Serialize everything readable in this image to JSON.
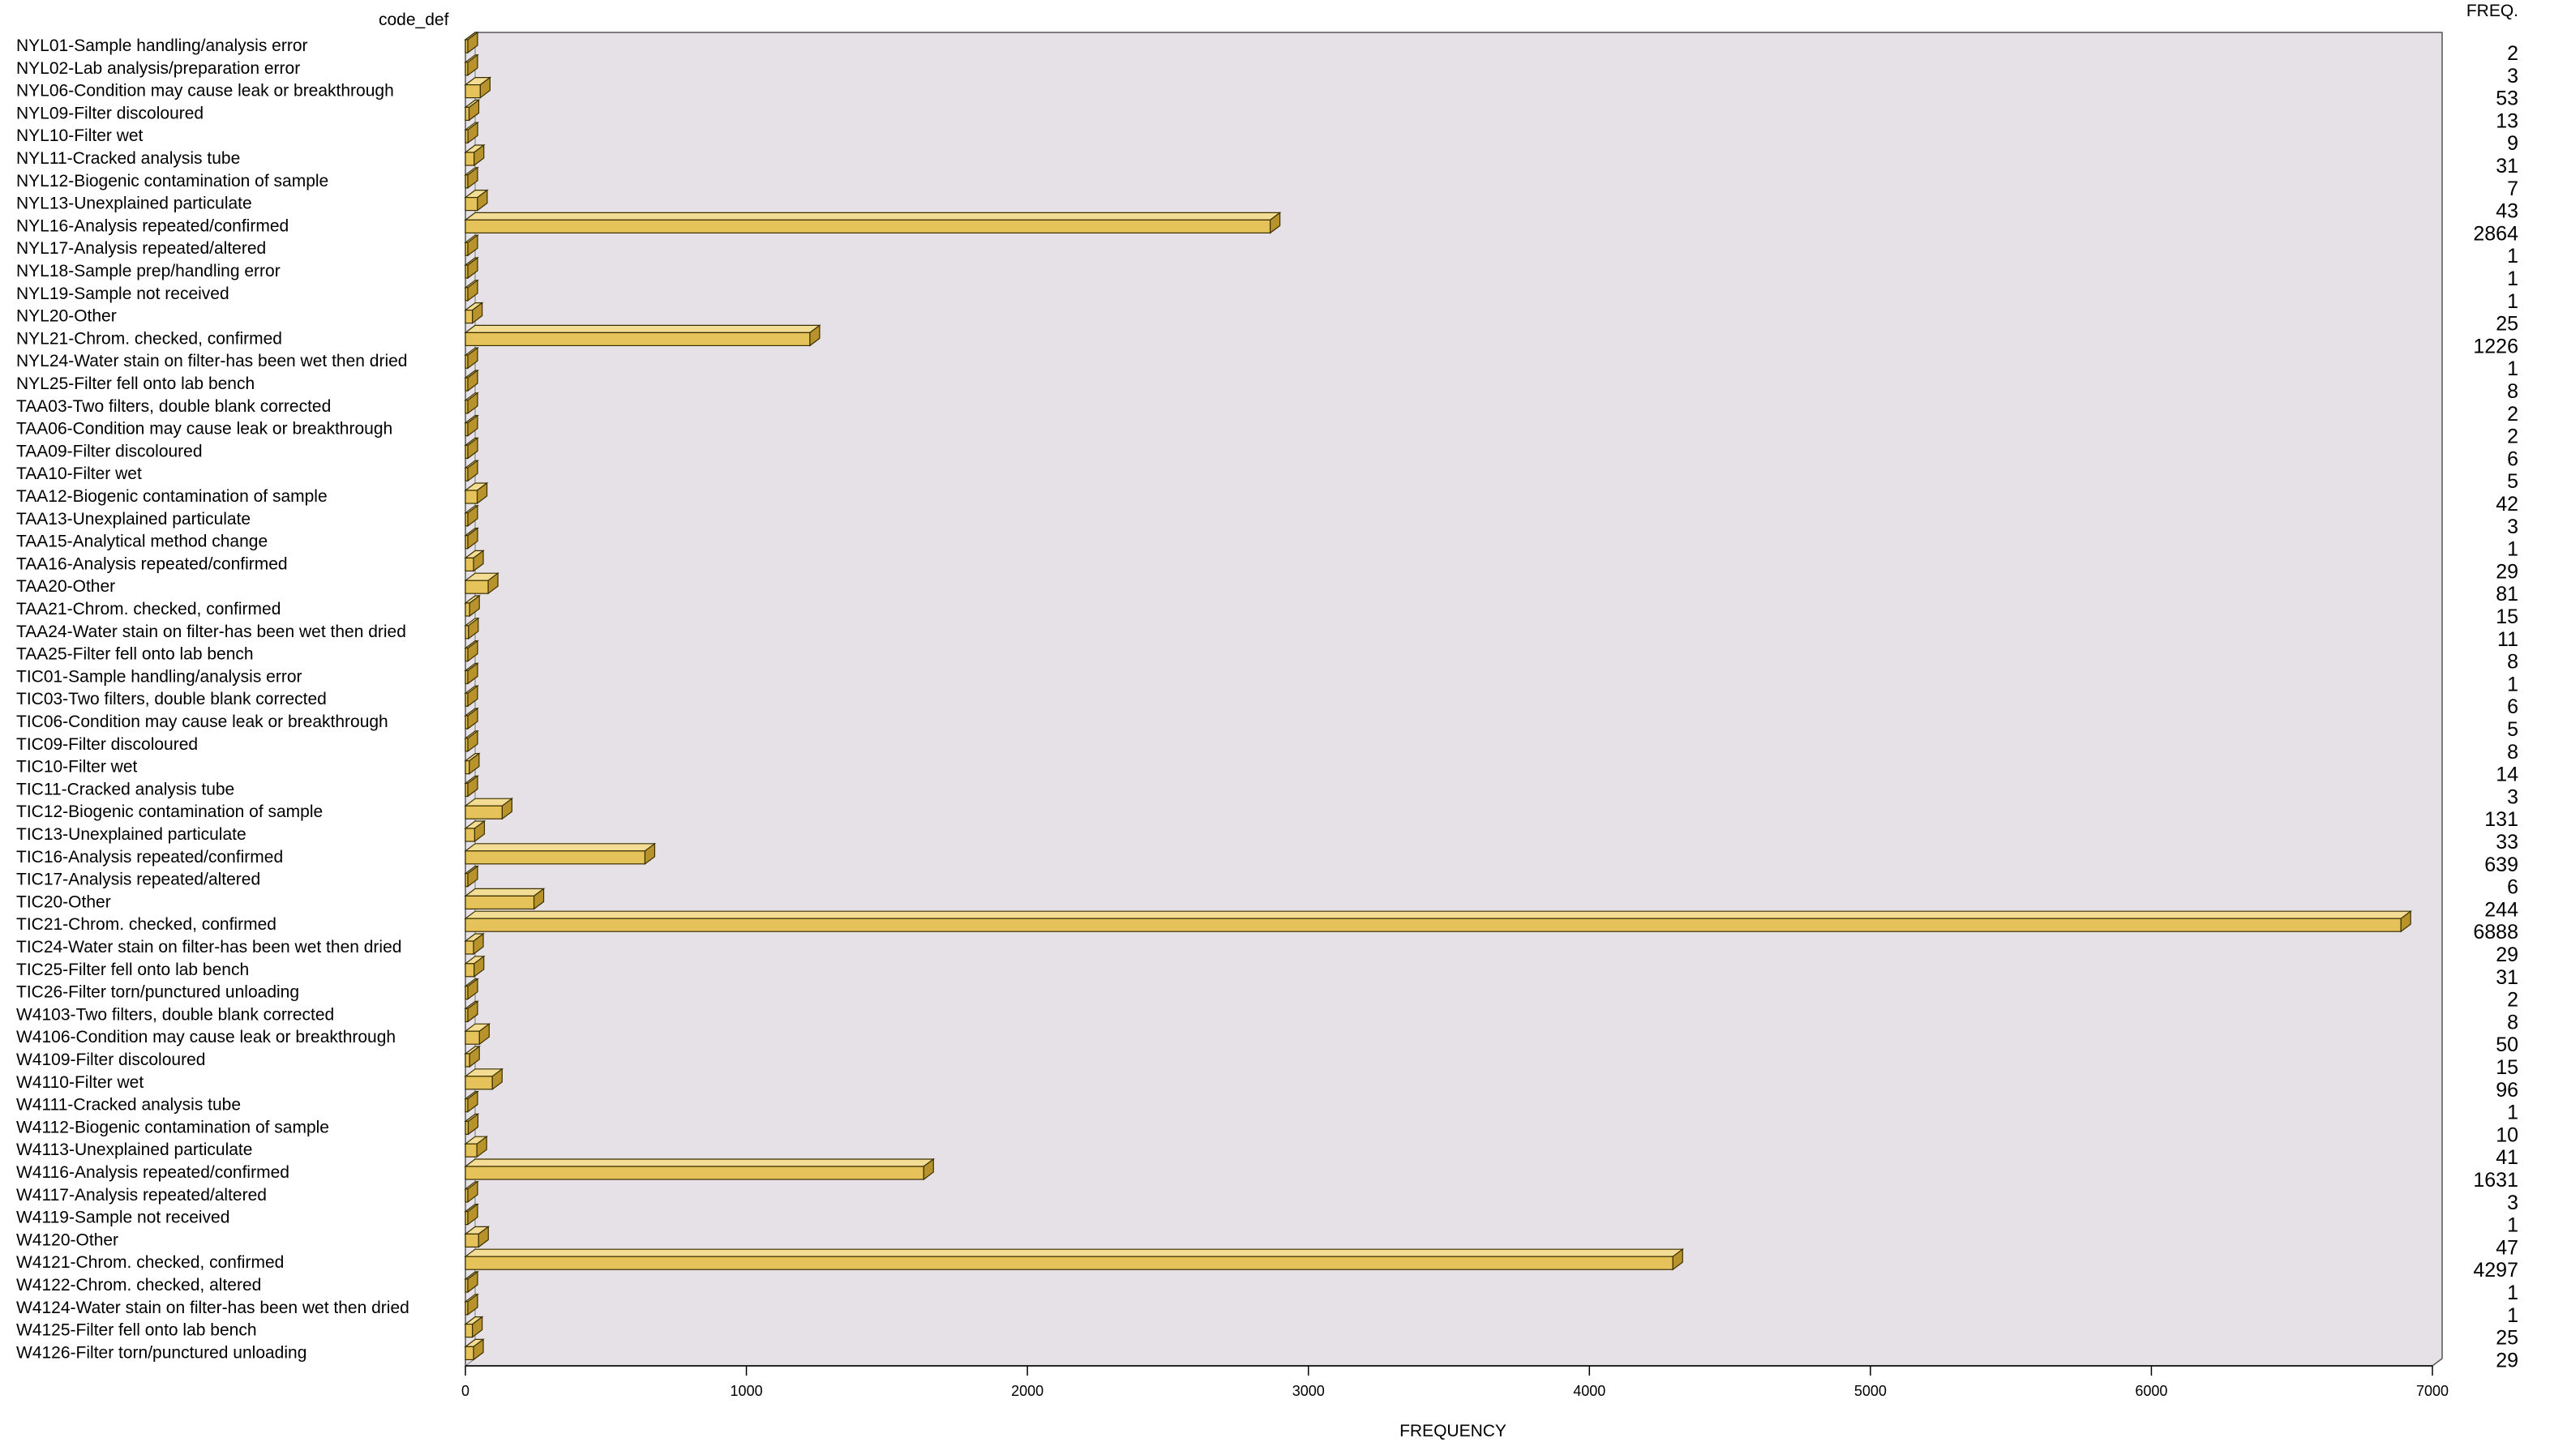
{
  "chart_data": {
    "type": "bar",
    "orientation": "horizontal",
    "category_header": "code_def",
    "value_column_header": "FREQ.",
    "xlabel": "FREQUENCY",
    "xlim": [
      0,
      7000
    ],
    "x_ticks": [
      "0",
      "1000",
      "2000",
      "3000",
      "4000",
      "5000",
      "6000",
      "7000"
    ],
    "grid": false,
    "bar_color": "#e6c25a",
    "plot_background": "#e6e1e6",
    "categories": [
      "NYL01-Sample handling/analysis error",
      "NYL02-Lab analysis/preparation error",
      "NYL06-Condition may cause leak or breakthrough",
      "NYL09-Filter discoloured",
      "NYL10-Filter wet",
      "NYL11-Cracked analysis tube",
      "NYL12-Biogenic contamination of sample",
      "NYL13-Unexplained particulate",
      "NYL16-Analysis repeated/confirmed",
      "NYL17-Analysis repeated/altered",
      "NYL18-Sample prep/handling error",
      "NYL19-Sample not received",
      "NYL20-Other",
      "NYL21-Chrom. checked, confirmed",
      "NYL24-Water stain on filter-has been wet then dried",
      "NYL25-Filter fell onto lab bench",
      "TAA03-Two filters, double blank corrected",
      "TAA06-Condition may cause leak or breakthrough",
      "TAA09-Filter discoloured",
      "TAA10-Filter wet",
      "TAA12-Biogenic contamination of sample",
      "TAA13-Unexplained particulate",
      "TAA15-Analytical method change",
      "TAA16-Analysis repeated/confirmed",
      "TAA20-Other",
      "TAA21-Chrom. checked, confirmed",
      "TAA24-Water stain on filter-has been wet then dried",
      "TAA25-Filter fell onto lab bench",
      "TIC01-Sample handling/analysis error",
      "TIC03-Two filters, double blank corrected",
      "TIC06-Condition may cause leak or breakthrough",
      "TIC09-Filter discoloured",
      "TIC10-Filter wet",
      "TIC11-Cracked analysis tube",
      "TIC12-Biogenic contamination of sample",
      "TIC13-Unexplained particulate",
      "TIC16-Analysis repeated/confirmed",
      "TIC17-Analysis repeated/altered",
      "TIC20-Other",
      "TIC21-Chrom. checked, confirmed",
      "TIC24-Water stain on filter-has been wet then dried",
      "TIC25-Filter fell onto lab bench",
      "TIC26-Filter torn/punctured unloading",
      "W4103-Two filters, double blank corrected",
      "W4106-Condition may cause leak or breakthrough",
      "W4109-Filter discoloured",
      "W4110-Filter wet",
      "W4111-Cracked analysis tube",
      "W4112-Biogenic contamination of sample",
      "W4113-Unexplained particulate",
      "W4116-Analysis repeated/confirmed",
      "W4117-Analysis repeated/altered",
      "W4119-Sample not received",
      "W4120-Other",
      "W4121-Chrom. checked, confirmed",
      "W4122-Chrom. checked, altered",
      "W4124-Water stain on filter-has been wet then dried",
      "W4125-Filter fell onto lab bench",
      "W4126-Filter torn/punctured unloading"
    ],
    "values": [
      2,
      3,
      53,
      13,
      9,
      31,
      7,
      43,
      2864,
      1,
      1,
      1,
      25,
      1226,
      1,
      8,
      2,
      2,
      6,
      5,
      42,
      3,
      1,
      29,
      81,
      15,
      11,
      8,
      1,
      6,
      5,
      8,
      14,
      3,
      131,
      33,
      639,
      6,
      244,
      6888,
      29,
      31,
      2,
      8,
      50,
      15,
      96,
      1,
      10,
      41,
      1631,
      3,
      1,
      47,
      4297,
      1,
      1,
      25,
      29
    ]
  }
}
